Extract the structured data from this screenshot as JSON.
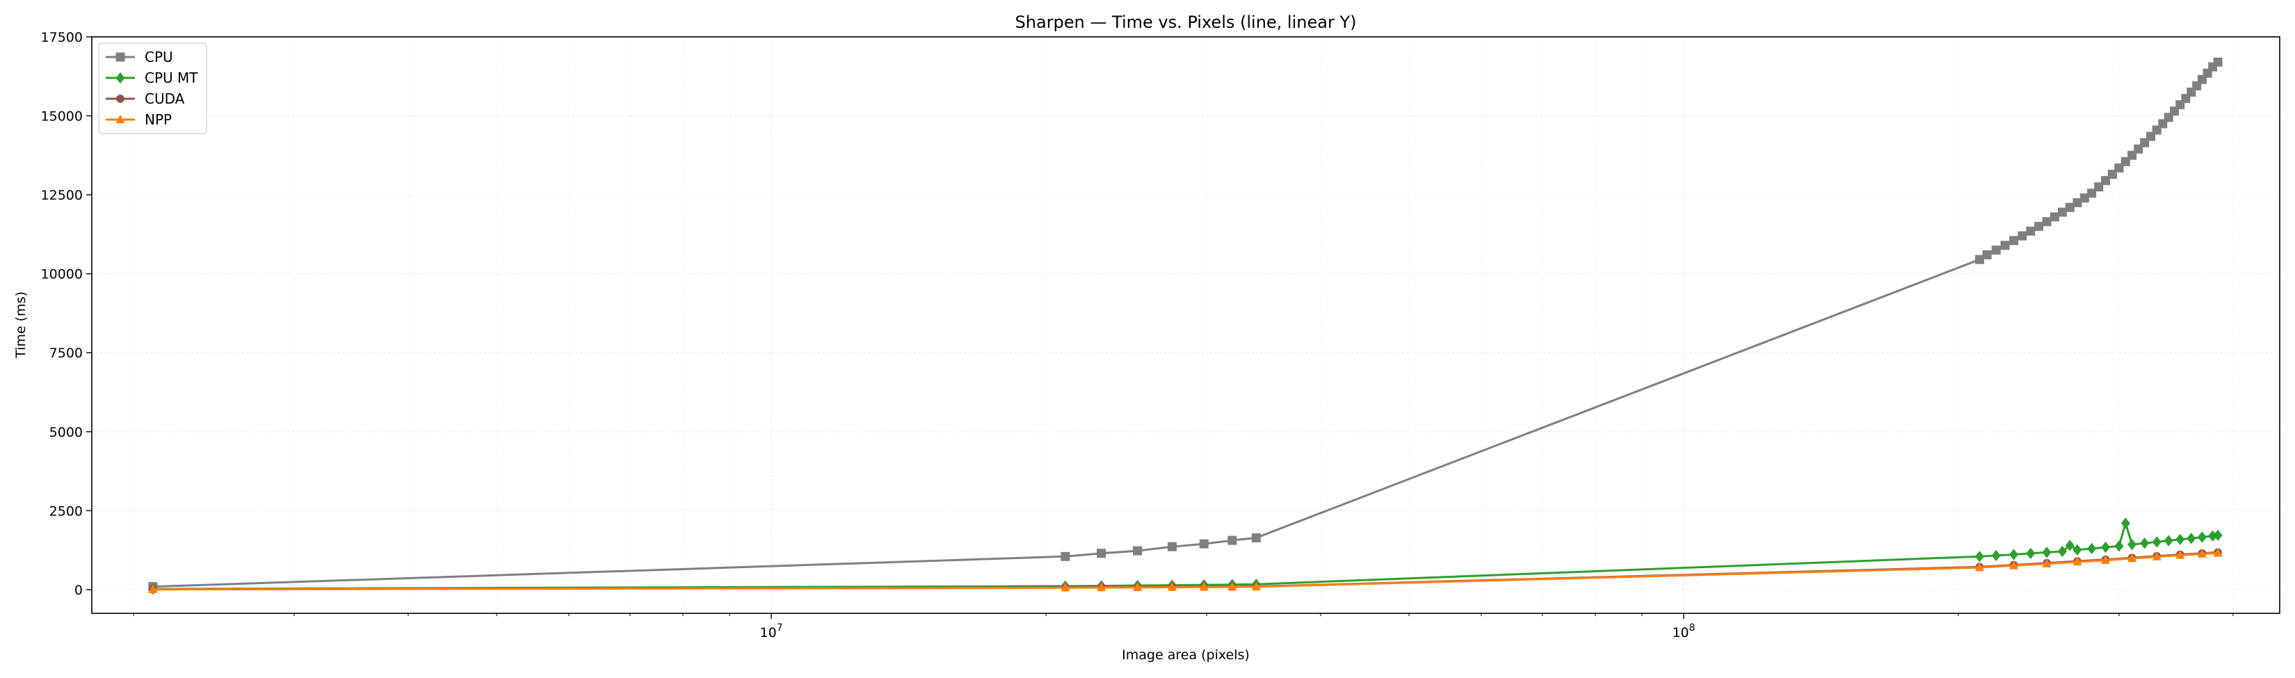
{
  "chart_data": {
    "type": "line",
    "title": "Sharpen — Time vs. Pixels (line, linear Y)",
    "xlabel": "Image area (pixels)",
    "ylabel": "Time (ms)",
    "xscale": "log",
    "xlim": [
      1800000,
      450000000
    ],
    "ylim": [
      -750,
      17500
    ],
    "yticks": [
      0,
      2500,
      5000,
      7500,
      10000,
      12500,
      15000,
      17500
    ],
    "ytick_labels": [
      "0",
      "2500",
      "5000",
      "7500",
      "10000",
      "12500",
      "15000",
      "17500"
    ],
    "xticks": [
      10000000,
      100000000
    ],
    "grid": true,
    "legend_position": "top-left",
    "series": [
      {
        "name": "CPU",
        "color": "#7f7f7f",
        "marker": "square",
        "points": [
          [
            2100000,
            95
          ],
          [
            21000000,
            1050
          ],
          [
            23000000,
            1150
          ],
          [
            25200000,
            1230
          ],
          [
            27500000,
            1360
          ],
          [
            29800000,
            1450
          ],
          [
            32000000,
            1560
          ],
          [
            34000000,
            1640
          ],
          [
            211000000,
            10450
          ],
          [
            215000000,
            10600
          ],
          [
            220000000,
            10750
          ],
          [
            225000000,
            10900
          ],
          [
            230000000,
            11050
          ],
          [
            235000000,
            11200
          ],
          [
            240000000,
            11350
          ],
          [
            245000000,
            11500
          ],
          [
            250000000,
            11650
          ],
          [
            255000000,
            11800
          ],
          [
            260000000,
            11950
          ],
          [
            265000000,
            12100
          ],
          [
            270000000,
            12250
          ],
          [
            275000000,
            12400
          ],
          [
            280000000,
            12550
          ],
          [
            285000000,
            12750
          ],
          [
            290000000,
            12950
          ],
          [
            295000000,
            13150
          ],
          [
            300000000,
            13350
          ],
          [
            305000000,
            13550
          ],
          [
            310000000,
            13750
          ],
          [
            315000000,
            13950
          ],
          [
            320000000,
            14150
          ],
          [
            325000000,
            14350
          ],
          [
            330000000,
            14550
          ],
          [
            335000000,
            14750
          ],
          [
            340000000,
            14950
          ],
          [
            345000000,
            15150
          ],
          [
            350000000,
            15350
          ],
          [
            355000000,
            15550
          ],
          [
            360000000,
            15750
          ],
          [
            365000000,
            15950
          ],
          [
            370000000,
            16150
          ],
          [
            375000000,
            16350
          ],
          [
            380000000,
            16550
          ],
          [
            385000000,
            16700
          ]
        ]
      },
      {
        "name": "CPU MT",
        "color": "#2ca02c",
        "marker": "diamond",
        "points": [
          [
            2100000,
            20
          ],
          [
            21000000,
            110
          ],
          [
            23000000,
            120
          ],
          [
            25200000,
            130
          ],
          [
            27500000,
            140
          ],
          [
            29800000,
            150
          ],
          [
            32000000,
            160
          ],
          [
            34000000,
            170
          ],
          [
            211000000,
            1050
          ],
          [
            220000000,
            1080
          ],
          [
            230000000,
            1110
          ],
          [
            240000000,
            1150
          ],
          [
            250000000,
            1180
          ],
          [
            260000000,
            1210
          ],
          [
            265000000,
            1400
          ],
          [
            270000000,
            1260
          ],
          [
            280000000,
            1300
          ],
          [
            290000000,
            1340
          ],
          [
            300000000,
            1380
          ],
          [
            305000000,
            2100
          ],
          [
            310000000,
            1430
          ],
          [
            320000000,
            1470
          ],
          [
            330000000,
            1510
          ],
          [
            340000000,
            1550
          ],
          [
            350000000,
            1590
          ],
          [
            360000000,
            1620
          ],
          [
            370000000,
            1660
          ],
          [
            380000000,
            1700
          ],
          [
            385000000,
            1720
          ]
        ]
      },
      {
        "name": "CUDA",
        "color": "#8c564b",
        "marker": "circle",
        "points": [
          [
            2100000,
            10
          ],
          [
            21000000,
            70
          ],
          [
            23000000,
            75
          ],
          [
            25200000,
            80
          ],
          [
            27500000,
            85
          ],
          [
            29800000,
            90
          ],
          [
            32000000,
            95
          ],
          [
            34000000,
            100
          ],
          [
            211000000,
            720
          ],
          [
            230000000,
            780
          ],
          [
            250000000,
            840
          ],
          [
            270000000,
            900
          ],
          [
            290000000,
            950
          ],
          [
            310000000,
            1010
          ],
          [
            330000000,
            1060
          ],
          [
            350000000,
            1110
          ],
          [
            370000000,
            1150
          ],
          [
            385000000,
            1180
          ]
        ]
      },
      {
        "name": "NPP",
        "color": "#ff7f0e",
        "marker": "triangle",
        "points": [
          [
            2100000,
            5
          ],
          [
            21000000,
            60
          ],
          [
            23000000,
            65
          ],
          [
            25200000,
            70
          ],
          [
            27500000,
            75
          ],
          [
            29800000,
            80
          ],
          [
            32000000,
            85
          ],
          [
            34000000,
            90
          ],
          [
            211000000,
            700
          ],
          [
            230000000,
            760
          ],
          [
            250000000,
            820
          ],
          [
            270000000,
            880
          ],
          [
            290000000,
            930
          ],
          [
            310000000,
            990
          ],
          [
            330000000,
            1040
          ],
          [
            350000000,
            1090
          ],
          [
            370000000,
            1130
          ],
          [
            385000000,
            1160
          ]
        ]
      }
    ]
  }
}
